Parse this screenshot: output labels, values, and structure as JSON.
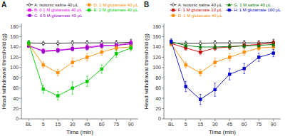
{
  "chart_data": [
    {
      "type": "line",
      "title": "A",
      "xlabel": "Time (min)",
      "ylabel": "Head withdrawal threshold (g)",
      "categories": [
        "BL",
        "5",
        "15",
        "30",
        "45",
        "60",
        "75",
        "90"
      ],
      "ylim": [
        0,
        185
      ],
      "yticks": [
        0,
        20,
        40,
        60,
        80,
        100,
        120,
        140,
        160,
        180
      ],
      "grid": false,
      "legend": "upper right",
      "series": [
        {
          "name": "A: isotonic saline 40 μL",
          "color": "#1a1a1a",
          "marker": "open-circle",
          "line_style": "solid",
          "values": [
            148,
            147,
            147,
            148,
            148,
            148,
            148,
            149
          ],
          "errors": [
            4,
            4,
            5,
            5,
            5,
            5,
            5,
            6
          ]
        },
        {
          "name": "B: 0.1 M glutamate 40 μL",
          "color": "#ee00ee",
          "marker": "square",
          "line_style": "solid",
          "values": [
            142,
            133,
            134,
            137,
            140,
            143,
            143,
            148
          ],
          "errors": [
            3,
            4,
            4,
            4,
            4,
            4,
            4,
            5
          ]
        },
        {
          "name": "C: 0.5 M glutamate 40 μL",
          "color": "#9900cc",
          "marker": "square",
          "line_style": "solid",
          "values": [
            143,
            131,
            133,
            136,
            138,
            142,
            143,
            146
          ],
          "errors": [
            3,
            4,
            4,
            4,
            4,
            4,
            4,
            5
          ]
        },
        {
          "name": "D: 1 M glutamate 40 μL",
          "color": "#ff8c00",
          "marker": "square",
          "line_style": "solid",
          "values": [
            146,
            105,
            90,
            110,
            120,
            130,
            138,
            140
          ],
          "errors": [
            4,
            6,
            6,
            8,
            7,
            6,
            5,
            5
          ]
        },
        {
          "name": "E: 2 M glutamate 40 μL",
          "color": "#00cc00",
          "marker": "square",
          "line_style": "solid",
          "values": [
            148,
            58,
            45,
            60,
            73,
            97,
            127,
            138
          ],
          "errors": [
            5,
            8,
            8,
            12,
            10,
            8,
            7,
            6
          ]
        }
      ]
    },
    {
      "type": "line",
      "title": "B",
      "xlabel": "Time (min)",
      "ylabel": "Head withdrawal threshold (g)",
      "categories": [
        "BL",
        "5",
        "15",
        "30",
        "45",
        "60",
        "75",
        "90"
      ],
      "ylim": [
        0,
        185
      ],
      "yticks": [
        0,
        20,
        40,
        60,
        80,
        100,
        120,
        140,
        160,
        180
      ],
      "grid": false,
      "legend": "upper right",
      "series": [
        {
          "name": "A: isotonic saline 40 μL",
          "color": "#1a1a1a",
          "marker": "open-circle",
          "line_style": "solid",
          "values": [
            148,
            147,
            147,
            148,
            148,
            148,
            148,
            149
          ],
          "errors": [
            4,
            4,
            5,
            5,
            5,
            5,
            5,
            6
          ]
        },
        {
          "name": "F: 1 M glutamate 10 μL",
          "color": "#cc0000",
          "marker": "square",
          "line_style": "solid",
          "values": [
            147,
            138,
            130,
            138,
            140,
            143,
            145,
            148
          ],
          "errors": [
            4,
            4,
            5,
            5,
            5,
            5,
            5,
            5
          ]
        },
        {
          "name": "D: 1 M glutamate 40 μL",
          "color": "#ff8c00",
          "marker": "square",
          "line_style": "solid",
          "values": [
            146,
            105,
            90,
            110,
            120,
            130,
            138,
            140
          ],
          "errors": [
            4,
            6,
            6,
            8,
            7,
            6,
            5,
            5
          ]
        },
        {
          "name": "G: 1 M saline 40 μL",
          "color": "#007700",
          "marker": "triangle",
          "line_style": "solid",
          "values": [
            150,
            143,
            140,
            140,
            141,
            142,
            143,
            145
          ],
          "errors": [
            4,
            4,
            4,
            4,
            4,
            4,
            4,
            5
          ]
        },
        {
          "name": "H: 1 M glutamate 100 μL",
          "color": "#0000cc",
          "marker": "square",
          "line_style": "solid",
          "values": [
            151,
            63,
            38,
            57,
            87,
            98,
            120,
            128
          ],
          "errors": [
            5,
            10,
            10,
            13,
            11,
            10,
            8,
            7
          ]
        }
      ]
    }
  ]
}
